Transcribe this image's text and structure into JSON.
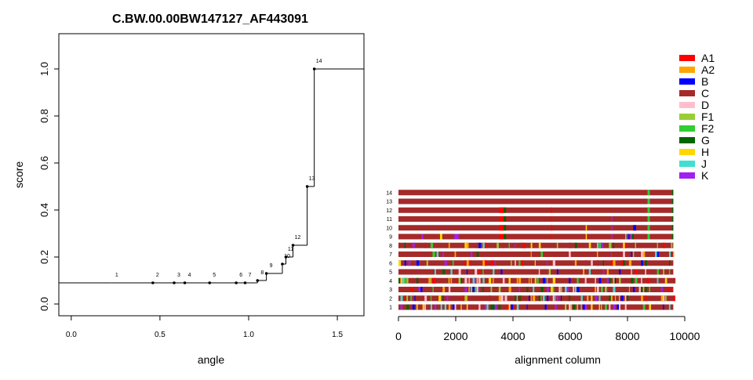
{
  "chart_data": [
    {
      "type": "step-line",
      "title": "C.BW.00.00BW147127_AF443091",
      "xlabel": "angle",
      "ylabel": "score",
      "xlim": [
        -0.07,
        1.65
      ],
      "ylim": [
        -0.05,
        1.15
      ],
      "xticks": [
        0.0,
        0.5,
        1.0,
        1.5
      ],
      "xtick_labels": [
        "0.0",
        "0.5",
        "1.0",
        "1.5"
      ],
      "yticks": [
        0.0,
        0.2,
        0.4,
        0.6,
        0.8,
        1.0
      ],
      "ytick_labels": [
        "0.0",
        "0.2",
        "0.4",
        "0.6",
        "0.8",
        "1.0"
      ],
      "points": [
        {
          "label": "1",
          "x": 0.23,
          "y": 0.09
        },
        {
          "label": "2",
          "x": 0.46,
          "y": 0.09
        },
        {
          "label": "3",
          "x": 0.58,
          "y": 0.09
        },
        {
          "label": "4",
          "x": 0.64,
          "y": 0.09
        },
        {
          "label": "5",
          "x": 0.78,
          "y": 0.09
        },
        {
          "label": "6",
          "x": 0.93,
          "y": 0.09
        },
        {
          "label": "7",
          "x": 0.98,
          "y": 0.09
        },
        {
          "label": "8",
          "x": 1.05,
          "y": 0.1
        },
        {
          "label": "9",
          "x": 1.1,
          "y": 0.13
        },
        {
          "label": "10",
          "x": 1.19,
          "y": 0.17
        },
        {
          "label": "11",
          "x": 1.21,
          "y": 0.2
        },
        {
          "label": "12",
          "x": 1.25,
          "y": 0.25
        },
        {
          "label": "13",
          "x": 1.33,
          "y": 0.5
        },
        {
          "label": "14",
          "x": 1.37,
          "y": 1.0
        }
      ]
    },
    {
      "type": "heatmap",
      "title": "",
      "xlabel": "alignment column",
      "ylabel": "",
      "xlim": [
        0,
        10000
      ],
      "xticks": [
        0,
        2000,
        4000,
        6000,
        8000,
        10000
      ],
      "xtick_labels": [
        "0",
        "2000",
        "4000",
        "6000",
        "8000",
        "10000"
      ],
      "alignment_length": 9600,
      "rows": [
        "1",
        "2",
        "3",
        "4",
        "5",
        "6",
        "7",
        "8",
        "9",
        "10",
        "11",
        "12",
        "13",
        "14"
      ],
      "legend_position": "top-right",
      "legend": [
        {
          "name": "A1",
          "color": "#ff0000"
        },
        {
          "name": "A2",
          "color": "#ffa500"
        },
        {
          "name": "B",
          "color": "#0000ff"
        },
        {
          "name": "C",
          "color": "#a52a2a"
        },
        {
          "name": "D",
          "color": "#ffc0cb"
        },
        {
          "name": "F1",
          "color": "#9acd32"
        },
        {
          "name": "F2",
          "color": "#32cd32"
        },
        {
          "name": "G",
          "color": "#006400"
        },
        {
          "name": "H",
          "color": "#ffd700"
        },
        {
          "name": "J",
          "color": "#40e0d0"
        },
        {
          "name": "K",
          "color": "#a020f0"
        }
      ],
      "base_subtype": "C",
      "segments": [
        {
          "row": "14",
          "subtype": "F2",
          "start": 8700,
          "end": 8780
        },
        {
          "row": "14",
          "subtype": "G",
          "start": 9560,
          "end": 9600
        },
        {
          "row": "13",
          "subtype": "F2",
          "start": 8700,
          "end": 8780
        },
        {
          "row": "13",
          "subtype": "G",
          "start": 9560,
          "end": 9600
        },
        {
          "row": "12",
          "subtype": "A1",
          "start": 3520,
          "end": 3680
        },
        {
          "row": "12",
          "subtype": "G",
          "start": 3680,
          "end": 3760
        },
        {
          "row": "12",
          "subtype": "A1",
          "start": 5330,
          "end": 5370
        },
        {
          "row": "12",
          "subtype": "F2",
          "start": 8700,
          "end": 8780
        },
        {
          "row": "12",
          "subtype": "G",
          "start": 9560,
          "end": 9600
        },
        {
          "row": "11",
          "subtype": "A1",
          "start": 3520,
          "end": 3680
        },
        {
          "row": "11",
          "subtype": "G",
          "start": 3680,
          "end": 3760
        },
        {
          "row": "11",
          "subtype": "A1",
          "start": 5330,
          "end": 5370
        },
        {
          "row": "11",
          "subtype": "K",
          "start": 7430,
          "end": 7470
        },
        {
          "row": "11",
          "subtype": "F2",
          "start": 8700,
          "end": 8780
        },
        {
          "row": "11",
          "subtype": "G",
          "start": 9560,
          "end": 9600
        },
        {
          "row": "10",
          "subtype": "A1",
          "start": 3520,
          "end": 3680
        },
        {
          "row": "10",
          "subtype": "G",
          "start": 3680,
          "end": 3760
        },
        {
          "row": "10",
          "subtype": "A1",
          "start": 5330,
          "end": 5370
        },
        {
          "row": "10",
          "subtype": "H",
          "start": 6540,
          "end": 6580
        },
        {
          "row": "10",
          "subtype": "K",
          "start": 7430,
          "end": 7470
        },
        {
          "row": "10",
          "subtype": "B",
          "start": 8200,
          "end": 8300
        },
        {
          "row": "10",
          "subtype": "F2",
          "start": 8700,
          "end": 8780
        },
        {
          "row": "10",
          "subtype": "G",
          "start": 9560,
          "end": 9600
        },
        {
          "row": "9",
          "subtype": "K",
          "start": 800,
          "end": 860
        },
        {
          "row": "9",
          "subtype": "H",
          "start": 1450,
          "end": 1530
        },
        {
          "row": "9",
          "subtype": "K",
          "start": 1950,
          "end": 2100
        },
        {
          "row": "9",
          "subtype": "A1",
          "start": 3520,
          "end": 3680
        },
        {
          "row": "9",
          "subtype": "G",
          "start": 3680,
          "end": 3760
        },
        {
          "row": "9",
          "subtype": "A1",
          "start": 5330,
          "end": 5370
        },
        {
          "row": "9",
          "subtype": "H",
          "start": 6540,
          "end": 6580
        },
        {
          "row": "9",
          "subtype": "K",
          "start": 7430,
          "end": 7470
        },
        {
          "row": "9",
          "subtype": "J",
          "start": 7920,
          "end": 7960
        },
        {
          "row": "9",
          "subtype": "B",
          "start": 8030,
          "end": 8070
        },
        {
          "row": "9",
          "subtype": "K",
          "start": 8100,
          "end": 8160
        },
        {
          "row": "9",
          "subtype": "G",
          "start": 8160,
          "end": 8220
        },
        {
          "row": "9",
          "subtype": "F2",
          "start": 8700,
          "end": 8780
        },
        {
          "row": "9",
          "subtype": "G",
          "start": 9560,
          "end": 9600
        }
      ]
    }
  ]
}
